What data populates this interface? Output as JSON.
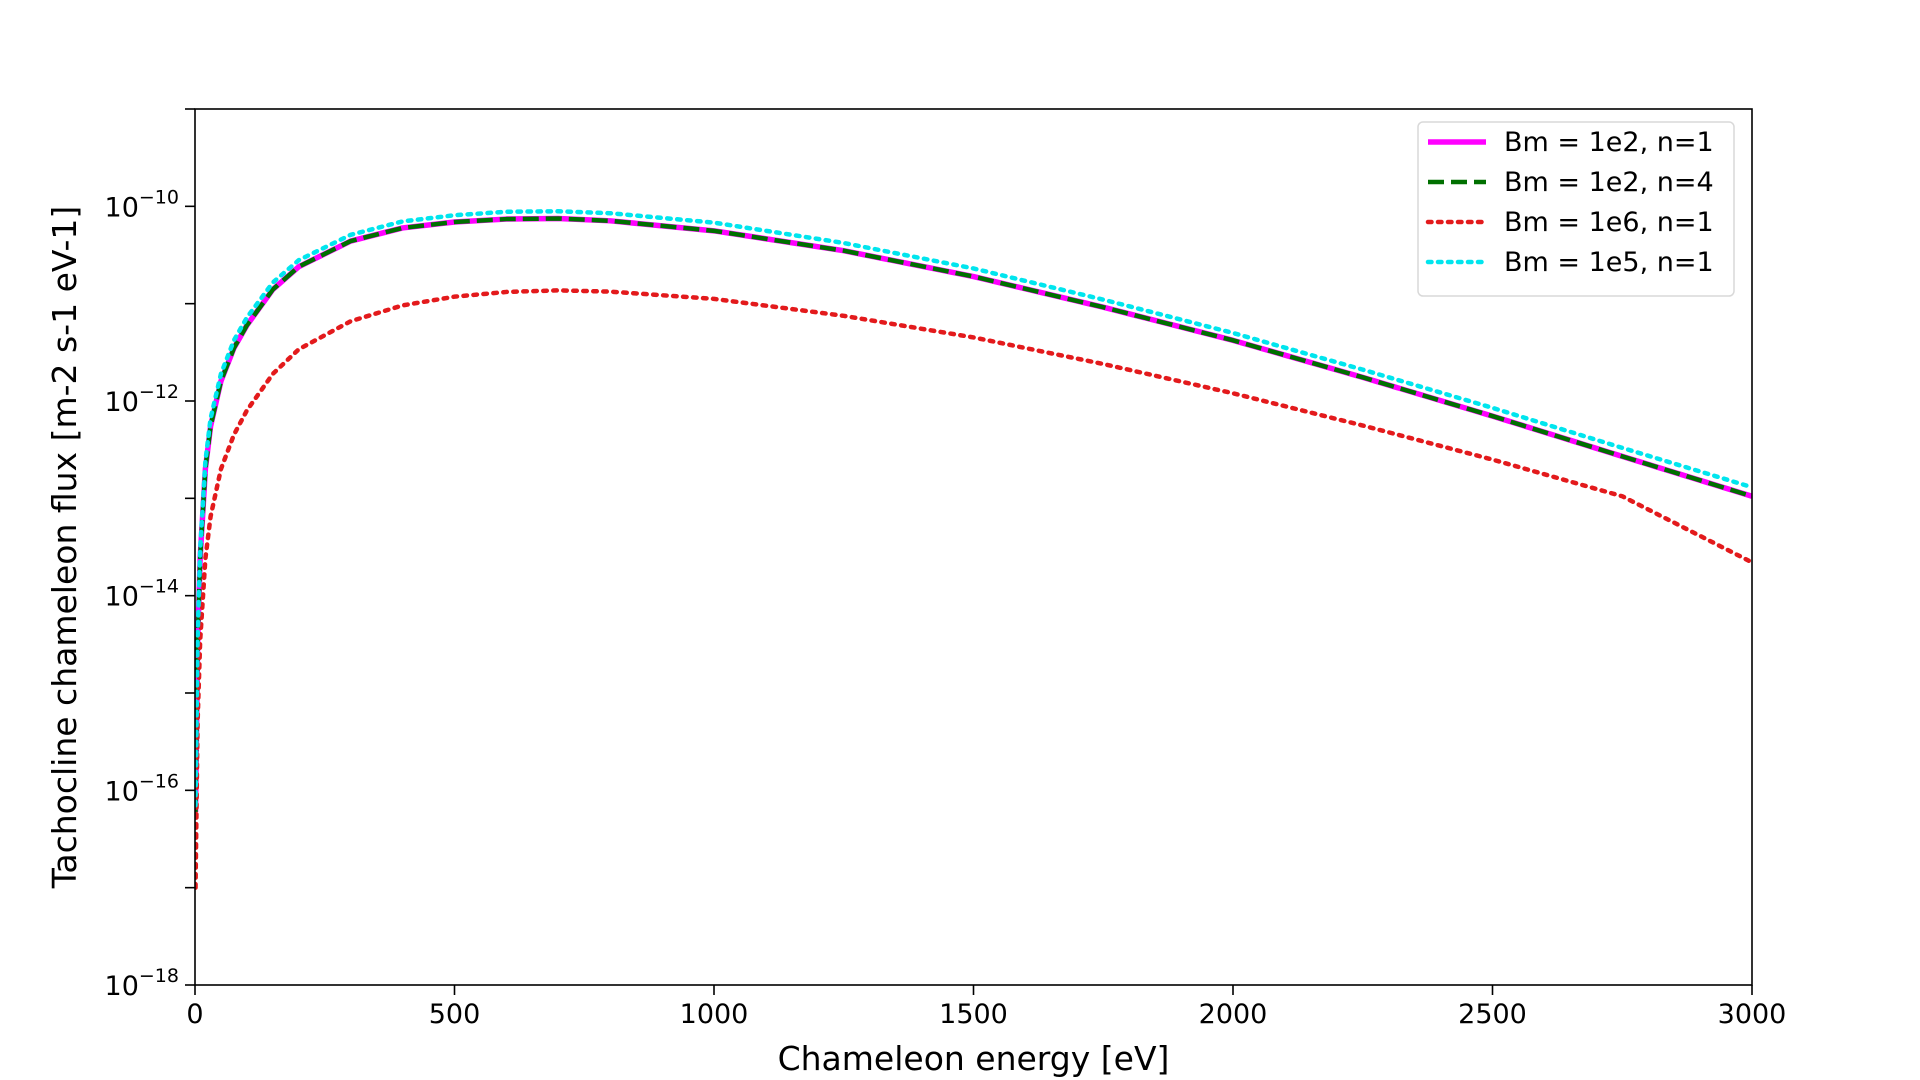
{
  "chart_data": {
    "type": "line",
    "title": "",
    "xlabel": "Chameleon energy [eV]",
    "ylabel": "Tachocline chameleon flux [m-2 s-1 eV-1]",
    "xlim": [
      0,
      3000
    ],
    "ylim": [
      1e-18,
      1e-09
    ],
    "yscale": "log",
    "grid": false,
    "legend_position": "top-right",
    "x_ticks": [
      "0",
      "500",
      "1000",
      "1500",
      "2000",
      "2500",
      "3000"
    ],
    "x_tick_values": [
      0,
      500,
      1000,
      1500,
      2000,
      2500,
      3000
    ],
    "y_ticks": [
      {
        "base": "10",
        "exp": "−18",
        "value": 1e-18
      },
      {
        "base": "10",
        "exp": "−16",
        "value": 1e-16
      },
      {
        "base": "10",
        "exp": "−14",
        "value": 1e-14
      },
      {
        "base": "10",
        "exp": "−12",
        "value": 1e-12
      },
      {
        "base": "10",
        "exp": "−10",
        "value": 1e-10
      }
    ],
    "series": [
      {
        "name": "Bm = 1e2, n=1",
        "color": "#ff00ff",
        "style": "solid",
        "x": [
          1,
          5,
          10,
          20,
          30,
          50,
          75,
          100,
          150,
          200,
          300,
          400,
          500,
          600,
          700,
          800,
          1000,
          1250,
          1500,
          1750,
          2000,
          2250,
          2500,
          2750,
          3000
        ],
        "y": [
          6e-17,
          3e-15,
          2.5e-14,
          2e-13,
          5.5e-13,
          1.6e-12,
          3.5e-12,
          6e-12,
          1.4e-11,
          2.4e-11,
          4.4e-11,
          6e-11,
          6.9e-11,
          7.4e-11,
          7.5e-11,
          7.1e-11,
          5.6e-11,
          3.5e-11,
          1.9e-11,
          9.2e-12,
          4.2e-12,
          1.75e-12,
          7e-13,
          2.7e-13,
          1.05e-13
        ]
      },
      {
        "name": "Bm = 1e2, n=4",
        "color": "#007000",
        "style": "dashed",
        "x": [
          1,
          5,
          10,
          20,
          30,
          50,
          75,
          100,
          150,
          200,
          300,
          400,
          500,
          600,
          700,
          800,
          1000,
          1250,
          1500,
          1750,
          2000,
          2250,
          2500,
          2750,
          3000
        ],
        "y": [
          6e-17,
          3e-15,
          2.5e-14,
          2e-13,
          5.5e-13,
          1.6e-12,
          3.5e-12,
          6e-12,
          1.4e-11,
          2.4e-11,
          4.4e-11,
          6e-11,
          6.9e-11,
          7.4e-11,
          7.5e-11,
          7.1e-11,
          5.6e-11,
          3.5e-11,
          1.9e-11,
          9.2e-12,
          4.2e-12,
          1.75e-12,
          7e-13,
          2.7e-13,
          1.05e-13
        ]
      },
      {
        "name": "Bm = 1e6, n=1",
        "color": "#e31a1c",
        "style": "dotted",
        "x": [
          1,
          5,
          10,
          20,
          30,
          50,
          75,
          100,
          150,
          200,
          300,
          400,
          500,
          600,
          700,
          800,
          1000,
          1250,
          1500,
          1750,
          2000,
          2250,
          2500,
          2750,
          3000
        ],
        "y": [
          1e-17,
          5e-16,
          3.5e-15,
          2.4e-14,
          6.5e-14,
          2e-13,
          4.5e-13,
          8e-13,
          1.9e-12,
          3.4e-12,
          6.6e-12,
          9.6e-12,
          1.18e-11,
          1.32e-11,
          1.37e-11,
          1.33e-11,
          1.12e-11,
          7.5e-12,
          4.5e-12,
          2.4e-12,
          1.2e-12,
          5.6e-13,
          2.5e-13,
          1.05e-13,
          2.2e-14
        ]
      },
      {
        "name": "Bm = 1e5, n=1",
        "color": "#00e5ee",
        "style": "dotted",
        "x": [
          1,
          5,
          10,
          20,
          30,
          50,
          75,
          100,
          150,
          200,
          300,
          400,
          500,
          600,
          700,
          800,
          1000,
          1250,
          1500,
          1750,
          2000,
          2250,
          2500,
          2750,
          3000
        ],
        "y": [
          7e-17,
          3.6e-15,
          3e-14,
          2.4e-13,
          6.6e-13,
          1.9e-12,
          4.2e-12,
          7.2e-12,
          1.65e-11,
          2.8e-11,
          5.1e-11,
          7e-11,
          8.1e-11,
          8.8e-11,
          8.9e-11,
          8.5e-11,
          6.8e-11,
          4.2e-11,
          2.3e-11,
          1.1e-11,
          5e-12,
          2.1e-12,
          8.5e-13,
          3.3e-13,
          1.3e-13
        ]
      }
    ]
  }
}
